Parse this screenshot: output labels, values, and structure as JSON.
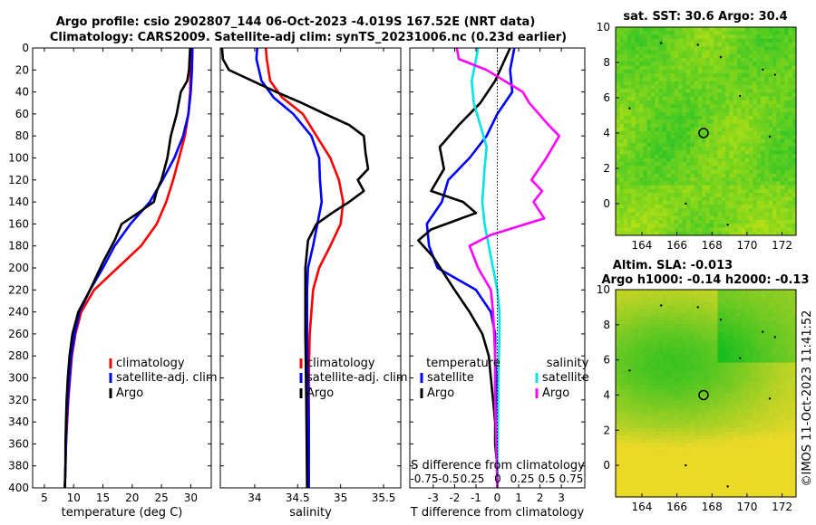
{
  "figure": {
    "title_line1": "Argo profile: csio 2902807_144 06-Oct-2023 -4.019S 167.52E (NRT data)",
    "title_line2": "Climatology: CARS2009. Satellite-adj clim: synTS_20231006.nc (0.23d earlier)",
    "credit": "©IMOS 11-Oct-2023 11:41:52"
  },
  "colors": {
    "climatology": "#ff0000",
    "satellite": "#0000ff",
    "argo": "#000000",
    "sal_satellite": "#00e5e5",
    "sal_argo": "#ff00ff"
  },
  "chart_data": [
    {
      "id": "temperature",
      "type": "line",
      "xlabel": "temperature (deg C)",
      "xlim": [
        3,
        33.5
      ],
      "xticks": [
        5,
        10,
        15,
        20,
        25,
        30
      ],
      "ylim": [
        0,
        400
      ],
      "yticks": [
        0,
        20,
        40,
        60,
        80,
        100,
        120,
        140,
        160,
        180,
        200,
        220,
        240,
        260,
        280,
        300,
        320,
        340,
        360,
        380,
        400
      ],
      "legend": [
        "climatology",
        "satellite-adj. clim",
        "Argo"
      ],
      "series": [
        {
          "name": "climatology",
          "color": "#ff0000",
          "points": [
            [
              30.1,
              0
            ],
            [
              30.0,
              20
            ],
            [
              29.9,
              40
            ],
            [
              29.6,
              60
            ],
            [
              29.0,
              80
            ],
            [
              28.0,
              100
            ],
            [
              27.0,
              120
            ],
            [
              25.8,
              140
            ],
            [
              24.2,
              160
            ],
            [
              21.5,
              180
            ],
            [
              17.5,
              200
            ],
            [
              13.5,
              220
            ],
            [
              11.3,
              240
            ],
            [
              10.3,
              260
            ],
            [
              9.7,
              280
            ],
            [
              9.4,
              300
            ],
            [
              9.1,
              320
            ],
            [
              8.9,
              340
            ],
            [
              8.7,
              360
            ],
            [
              8.6,
              380
            ],
            [
              8.5,
              400
            ]
          ]
        },
        {
          "name": "satellite-adj. clim",
          "color": "#0000ff",
          "points": [
            [
              30.3,
              0
            ],
            [
              30.2,
              20
            ],
            [
              30.0,
              40
            ],
            [
              29.6,
              60
            ],
            [
              28.7,
              80
            ],
            [
              27.2,
              100
            ],
            [
              25.2,
              120
            ],
            [
              23.0,
              140
            ],
            [
              19.7,
              160
            ],
            [
              17.0,
              180
            ],
            [
              15.0,
              200
            ],
            [
              12.8,
              220
            ],
            [
              11.0,
              240
            ],
            [
              10.2,
              260
            ],
            [
              9.6,
              280
            ],
            [
              9.3,
              300
            ],
            [
              9.0,
              320
            ],
            [
              8.8,
              340
            ],
            [
              8.7,
              360
            ],
            [
              8.6,
              380
            ],
            [
              8.5,
              400
            ]
          ]
        },
        {
          "name": "Argo",
          "color": "#000000",
          "points": [
            [
              29.9,
              0
            ],
            [
              29.7,
              20
            ],
            [
              29.4,
              30
            ],
            [
              28.3,
              40
            ],
            [
              27.6,
              60
            ],
            [
              26.6,
              80
            ],
            [
              26.0,
              100
            ],
            [
              25.0,
              120
            ],
            [
              24.2,
              130
            ],
            [
              23.7,
              140
            ],
            [
              21.0,
              150
            ],
            [
              18.2,
              160
            ],
            [
              17.0,
              175
            ],
            [
              15.0,
              195
            ],
            [
              12.8,
              220
            ],
            [
              10.8,
              240
            ],
            [
              9.8,
              260
            ],
            [
              9.3,
              280
            ],
            [
              9.0,
              300
            ],
            [
              8.8,
              320
            ],
            [
              8.7,
              340
            ],
            [
              8.6,
              360
            ],
            [
              8.6,
              380
            ],
            [
              8.5,
              400
            ]
          ]
        }
      ]
    },
    {
      "id": "salinity",
      "type": "line",
      "xlabel": "salinity",
      "xlim": [
        33.6,
        35.7
      ],
      "xticks": [
        34,
        34.5,
        35,
        35.5
      ],
      "ylim": [
        0,
        400
      ],
      "legend": [
        "climatology",
        "satellite-adj. clim",
        "Argo"
      ],
      "series": [
        {
          "name": "climatology",
          "color": "#ff0000",
          "points": [
            [
              34.13,
              0
            ],
            [
              34.14,
              10
            ],
            [
              34.18,
              30
            ],
            [
              34.32,
              45
            ],
            [
              34.56,
              60
            ],
            [
              34.72,
              80
            ],
            [
              34.88,
              100
            ],
            [
              34.98,
              120
            ],
            [
              35.03,
              140
            ],
            [
              35.0,
              160
            ],
            [
              34.88,
              180
            ],
            [
              34.75,
              200
            ],
            [
              34.68,
              220
            ],
            [
              34.64,
              260
            ],
            [
              34.63,
              300
            ],
            [
              34.63,
              340
            ],
            [
              34.63,
              400
            ]
          ]
        },
        {
          "name": "satellite-adj. clim",
          "color": "#0000ff",
          "points": [
            [
              34.03,
              0
            ],
            [
              34.02,
              10
            ],
            [
              34.08,
              30
            ],
            [
              34.22,
              45
            ],
            [
              34.45,
              60
            ],
            [
              34.66,
              80
            ],
            [
              34.75,
              100
            ],
            [
              34.76,
              120
            ],
            [
              34.78,
              140
            ],
            [
              34.73,
              160
            ],
            [
              34.68,
              180
            ],
            [
              34.62,
              200
            ],
            [
              34.61,
              220
            ],
            [
              34.61,
              260
            ],
            [
              34.62,
              300
            ],
            [
              34.63,
              340
            ],
            [
              34.63,
              400
            ]
          ]
        },
        {
          "name": "Argo",
          "color": "#000000",
          "points": [
            [
              33.62,
              0
            ],
            [
              33.63,
              10
            ],
            [
              33.7,
              20
            ],
            [
              34.25,
              40
            ],
            [
              34.55,
              50
            ],
            [
              34.82,
              60
            ],
            [
              35.1,
              70
            ],
            [
              35.27,
              80
            ],
            [
              35.29,
              95
            ],
            [
              35.32,
              110
            ],
            [
              35.2,
              120
            ],
            [
              35.27,
              130
            ],
            [
              35.1,
              140
            ],
            [
              34.9,
              150
            ],
            [
              34.72,
              160
            ],
            [
              34.62,
              175
            ],
            [
              34.59,
              200
            ],
            [
              34.59,
              260
            ],
            [
              34.6,
              320
            ],
            [
              34.61,
              400
            ]
          ]
        }
      ]
    },
    {
      "id": "differences",
      "type": "line",
      "xlabel": "T difference from climatology",
      "xlim": [
        -4.1,
        4.1
      ],
      "xticks": [
        -3,
        -2,
        -1,
        0,
        1,
        2,
        3
      ],
      "ylim": [
        0,
        400
      ],
      "legend_titles": [
        "temperature",
        "salinity"
      ],
      "legend": [
        "satellite",
        "Argo",
        "satellite",
        "Argo"
      ],
      "secondary_axis_label": "S difference from climatology",
      "secondary_ticks": [
        "-0.75",
        "-0.5",
        "0.25",
        "0",
        "0.25",
        "0.5",
        "0.75"
      ],
      "series": [
        {
          "name": "temperature satellite",
          "color": "#0000ff",
          "points": [
            [
              0.8,
              0
            ],
            [
              0.6,
              20
            ],
            [
              0.7,
              40
            ],
            [
              0.0,
              60
            ],
            [
              -0.5,
              80
            ],
            [
              -1.3,
              100
            ],
            [
              -2.3,
              120
            ],
            [
              -2.6,
              140
            ],
            [
              -3.3,
              160
            ],
            [
              -3.2,
              180
            ],
            [
              -2.8,
              200
            ],
            [
              -1.0,
              220
            ],
            [
              -0.3,
              240
            ],
            [
              -0.1,
              260
            ],
            [
              -0.1,
              280
            ],
            [
              -0.05,
              300
            ],
            [
              -0.05,
              320
            ],
            [
              -0.05,
              340
            ],
            [
              0,
              360
            ],
            [
              0,
              380
            ],
            [
              0,
              400
            ]
          ]
        },
        {
          "name": "temperature Argo",
          "color": "#000000",
          "points": [
            [
              0.6,
              0
            ],
            [
              -0.1,
              30
            ],
            [
              -0.8,
              50
            ],
            [
              -1.8,
              70
            ],
            [
              -2.7,
              90
            ],
            [
              -2.5,
              110
            ],
            [
              -3.1,
              130
            ],
            [
              -1.6,
              140
            ],
            [
              -1.0,
              150
            ],
            [
              -3.1,
              165
            ],
            [
              -3.7,
              175
            ],
            [
              -3.0,
              190
            ],
            [
              -2.0,
              220
            ],
            [
              -1.3,
              240
            ],
            [
              -0.7,
              260
            ],
            [
              -0.4,
              280
            ],
            [
              -0.3,
              300
            ],
            [
              -0.2,
              320
            ],
            [
              -0.1,
              340
            ],
            [
              -0.1,
              360
            ],
            [
              0,
              380
            ],
            [
              0,
              400
            ]
          ]
        },
        {
          "name": "salinity satellite",
          "color": "#00e5e5",
          "points": [
            [
              -0.9,
              0
            ],
            [
              -1.0,
              10
            ],
            [
              -1.2,
              30
            ],
            [
              -1.1,
              50
            ],
            [
              -0.8,
              70
            ],
            [
              -0.5,
              90
            ],
            [
              -0.6,
              110
            ],
            [
              -0.7,
              140
            ],
            [
              -0.6,
              160
            ],
            [
              -0.4,
              180
            ],
            [
              -0.2,
              200
            ],
            [
              0.0,
              220
            ],
            [
              0.1,
              240
            ],
            [
              0.1,
              260
            ],
            [
              0.05,
              300
            ],
            [
              0,
              400
            ]
          ]
        },
        {
          "name": "salinity Argo",
          "color": "#ff00ff",
          "points": [
            [
              -1.9,
              0
            ],
            [
              -1.8,
              10
            ],
            [
              -0.5,
              20
            ],
            [
              1.2,
              40
            ],
            [
              1.5,
              50
            ],
            [
              2.4,
              70
            ],
            [
              2.9,
              80
            ],
            [
              2.3,
              100
            ],
            [
              1.6,
              120
            ],
            [
              2.1,
              130
            ],
            [
              1.7,
              140
            ],
            [
              2.2,
              155
            ],
            [
              -0.3,
              170
            ],
            [
              -1.3,
              180
            ],
            [
              -0.9,
              200
            ],
            [
              -0.3,
              220
            ],
            [
              -0.2,
              240
            ],
            [
              -0.15,
              260
            ],
            [
              -0.1,
              280
            ],
            [
              -0.1,
              320
            ],
            [
              -0.05,
              360
            ],
            [
              0,
              400
            ]
          ]
        }
      ]
    },
    {
      "id": "sst_map",
      "type": "heatmap",
      "title": "sat. SST: 30.6 Argo: 30.4",
      "xlim": [
        162.5,
        172.8
      ],
      "xticks": [
        164,
        166,
        168,
        170,
        172
      ],
      "ylim": [
        -1.8,
        10
      ],
      "yticks": [
        0,
        2,
        4,
        6,
        8,
        10
      ],
      "marker": [
        167.52,
        4.0
      ]
    },
    {
      "id": "sla_map",
      "type": "heatmap",
      "title": "Altim. SLA: -0.013",
      "subtitle": "Argo h1000: -0.14 h2000: -0.13",
      "xlim": [
        162.5,
        172.8
      ],
      "xticks": [
        164,
        166,
        168,
        170,
        172
      ],
      "ylim": [
        -1.8,
        10
      ],
      "yticks": [
        0,
        2,
        4,
        6,
        8,
        10
      ],
      "marker": [
        167.52,
        4.0
      ]
    }
  ]
}
